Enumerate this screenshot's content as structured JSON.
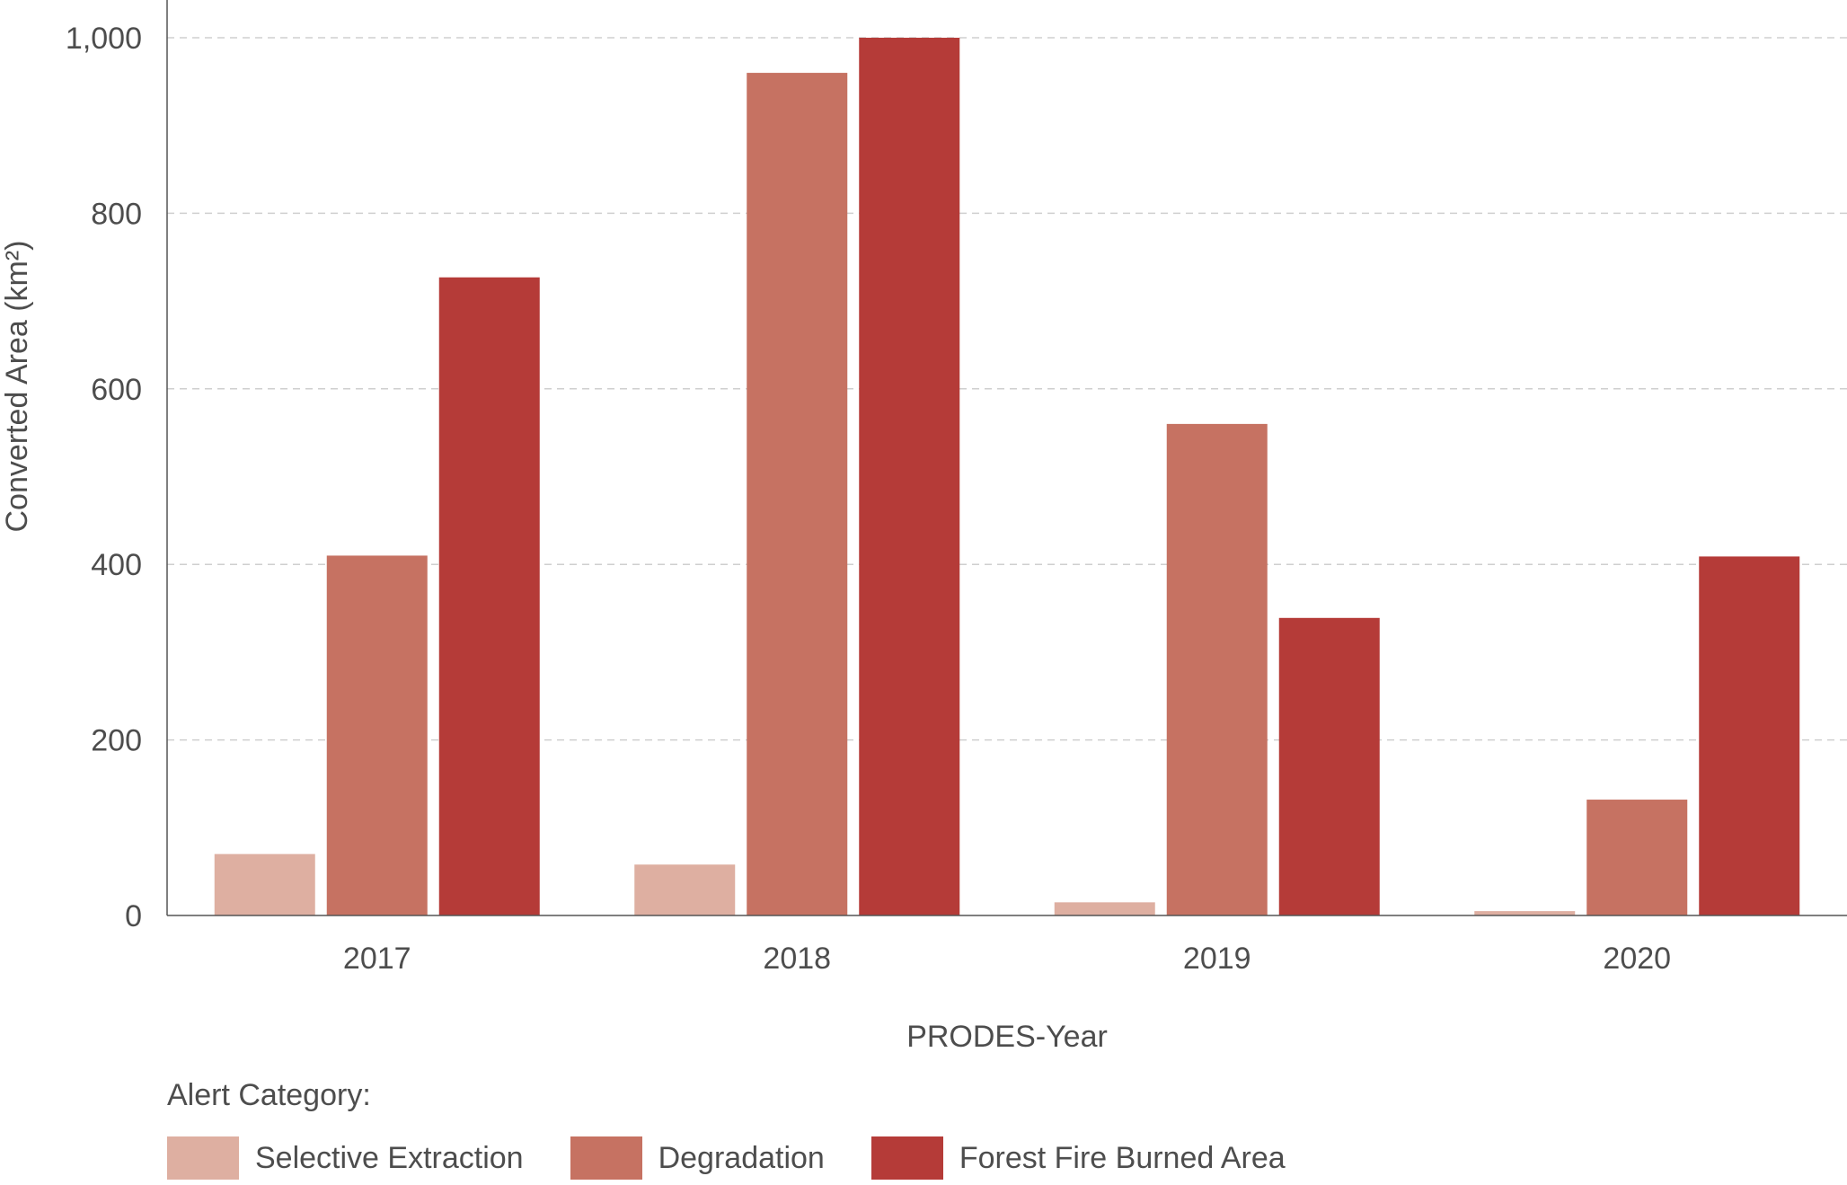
{
  "chart_data": {
    "type": "bar",
    "categories": [
      "2017",
      "2018",
      "2019",
      "2020"
    ],
    "series": [
      {
        "name": "Selective Extraction",
        "color": "#deafa1",
        "values": [
          70,
          58,
          15,
          5
        ]
      },
      {
        "name": "Degradation",
        "color": "#c67262",
        "values": [
          410,
          960,
          560,
          132
        ]
      },
      {
        "name": "Forest Fire Burned Area",
        "color": "#b53b38",
        "values": [
          727,
          1000,
          339,
          409
        ]
      }
    ],
    "xlabel": "PRODES-Year",
    "ylabel": "Converted Area (km²)",
    "ylim": [
      0,
      1000
    ],
    "yticks": [
      0,
      200,
      400,
      600,
      800,
      1000
    ],
    "ytick_labels": [
      "0",
      "200",
      "400",
      "600",
      "800",
      "1,000"
    ],
    "grid": true,
    "legend_title": "Alert Category:",
    "legend_position": "bottom-left"
  }
}
